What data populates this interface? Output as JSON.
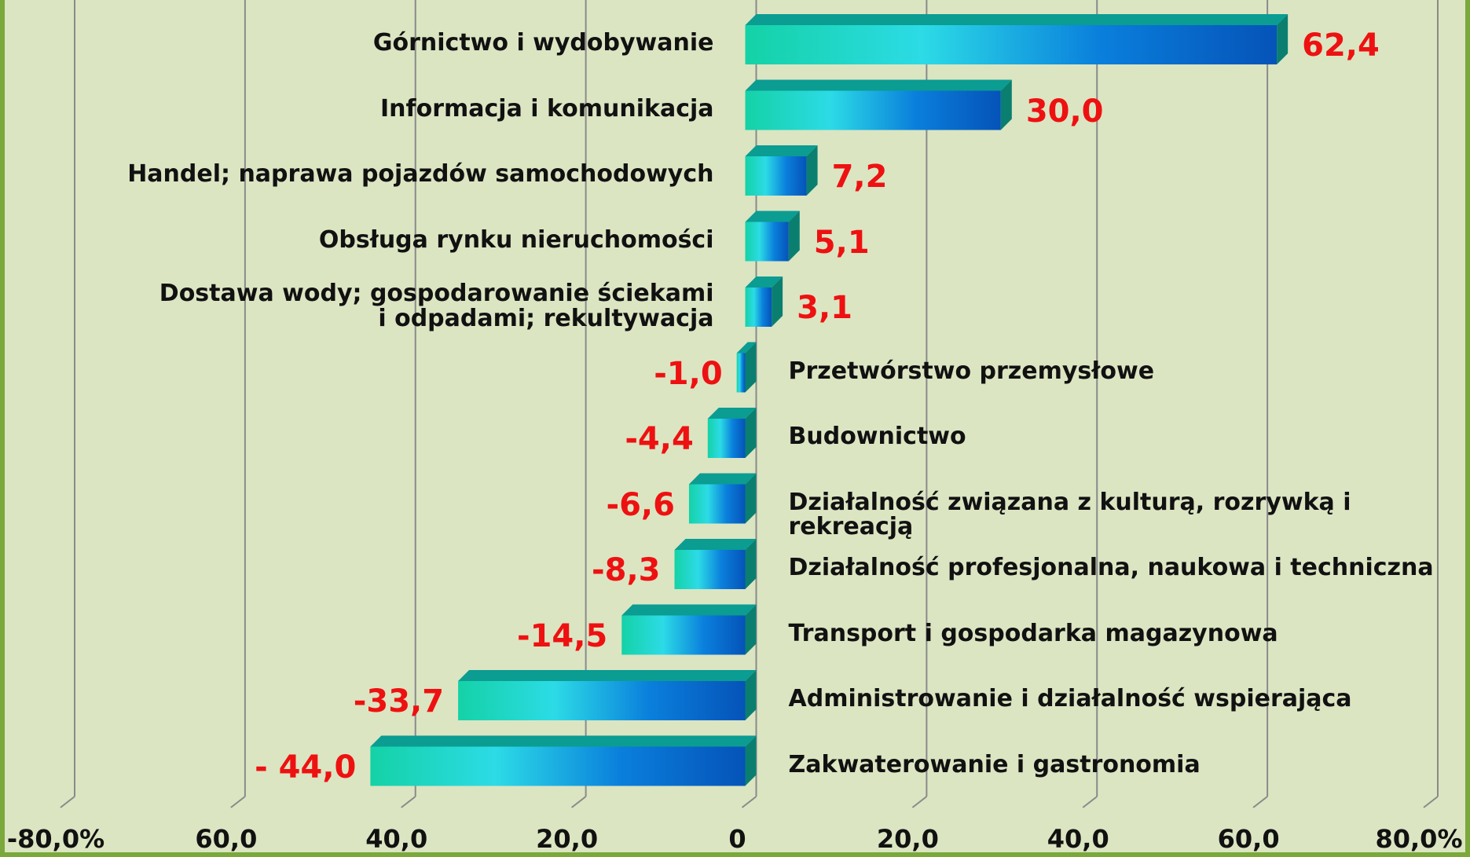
{
  "chart_data": {
    "type": "hbar3d",
    "categories": [
      "Górnictwo i wydobywanie",
      "Informacja i komunikacja",
      "Handel; naprawa pojazdów samochodowych",
      "Obsługa rynku nieruchomości",
      "Dostawa wody; gospodarowanie ściekami\ni odpadami; rekultywacja",
      "Przetwórstwo przemysłowe",
      "Budownictwo",
      "Działalność związana z kulturą, rozrywką i rekreacją",
      "Działalność profesjonalna, naukowa i techniczna",
      "Transport i gospodarka magazynowa",
      "Administrowanie i działalność wspierająca",
      "Zakwaterowanie i gastronomia"
    ],
    "values": [
      62.4,
      30.0,
      7.2,
      5.1,
      3.1,
      -1.0,
      -4.4,
      -6.6,
      -8.3,
      -14.5,
      -33.7,
      -44.0
    ],
    "value_labels": [
      "62,4",
      "30,0",
      "7,2",
      "5,1",
      "3,1",
      "-1,0",
      "-4,4",
      "-6,6",
      "-8,3",
      "-14,5",
      "-33,7",
      "- 44,0"
    ],
    "colors": [
      "#14d2a6",
      "#2cdbe6",
      "#0a7fdc",
      "#0553b8"
    ],
    "label_color": "#ee1111",
    "xlim": [
      -80,
      80
    ],
    "xticks": [
      {
        "value": -80,
        "label": "-80,0%"
      },
      {
        "value": -60,
        "label": "60,0"
      },
      {
        "value": -40,
        "label": "40,0"
      },
      {
        "value": -20,
        "label": "20,0"
      },
      0,
      {
        "value": 20,
        "label": "20,0"
      },
      {
        "value": 40,
        "label": "40,0"
      },
      {
        "value": 60,
        "label": "60,0"
      },
      {
        "value": 80,
        "label": "80,0%"
      }
    ],
    "grid": true
  }
}
